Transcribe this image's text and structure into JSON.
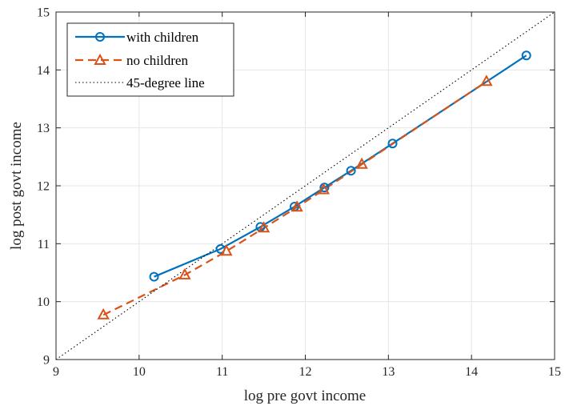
{
  "chart_data": {
    "type": "line",
    "xlabel": "log pre govt income",
    "ylabel": "log post govt income",
    "xlim": [
      9,
      15
    ],
    "ylim": [
      9,
      15
    ],
    "xticks": [
      "9",
      "10",
      "11",
      "12",
      "13",
      "14",
      "15"
    ],
    "yticks": [
      "9",
      "10",
      "11",
      "12",
      "13",
      "14",
      "15"
    ],
    "grid": true,
    "legend_position": "top-left",
    "series": [
      {
        "name": "with children",
        "color": "#0072BD",
        "marker": "circle",
        "line_style": "solid",
        "x": [
          10.18,
          10.98,
          11.46,
          11.87,
          12.23,
          12.55,
          13.05,
          14.66
        ],
        "y": [
          10.43,
          10.91,
          11.29,
          11.64,
          11.97,
          12.26,
          12.73,
          14.25
        ]
      },
      {
        "name": "no children",
        "color": "#D95319",
        "marker": "triangle",
        "line_style": "dashed",
        "x": [
          9.57,
          10.55,
          11.05,
          11.5,
          11.9,
          12.22,
          12.68,
          14.18
        ],
        "y": [
          9.77,
          10.46,
          10.87,
          11.27,
          11.63,
          11.93,
          12.37,
          13.8
        ]
      },
      {
        "name": "45-degree line",
        "color": "#000000",
        "marker": "none",
        "line_style": "dotted",
        "x": [
          9,
          15
        ],
        "y": [
          9,
          15
        ]
      }
    ]
  }
}
